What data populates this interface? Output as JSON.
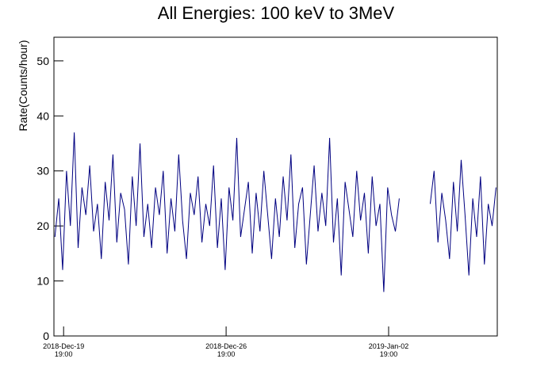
{
  "chart_data": {
    "type": "line",
    "title": "All Energies:  100 keV to 3MeV",
    "y_label": "Rate(Counts/hour)",
    "x": [
      "2018-12-19 10:00",
      "2018-12-19 14:00",
      "2018-12-19 18:00",
      "2018-12-19 22:00",
      "2018-12-20 02:00",
      "2018-12-20 06:00",
      "2018-12-20 10:00",
      "2018-12-20 14:00",
      "2018-12-20 18:00",
      "2018-12-20 22:00",
      "2018-12-21 02:00",
      "2018-12-21 06:00",
      "2018-12-21 10:00",
      "2018-12-21 14:00",
      "2018-12-21 18:00",
      "2018-12-21 22:00",
      "2018-12-22 02:00",
      "2018-12-22 06:00",
      "2018-12-22 10:00",
      "2018-12-22 14:00",
      "2018-12-22 18:00",
      "2018-12-22 22:00",
      "2018-12-23 02:00",
      "2018-12-23 06:00",
      "2018-12-23 10:00",
      "2018-12-23 14:00",
      "2018-12-23 18:00",
      "2018-12-23 22:00",
      "2018-12-24 02:00",
      "2018-12-24 06:00",
      "2018-12-24 10:00",
      "2018-12-24 14:00",
      "2018-12-24 18:00",
      "2018-12-24 22:00",
      "2018-12-25 02:00",
      "2018-12-25 06:00",
      "2018-12-25 10:00",
      "2018-12-25 14:00",
      "2018-12-25 18:00",
      "2018-12-25 22:00",
      "2018-12-26 02:00",
      "2018-12-26 06:00",
      "2018-12-26 10:00",
      "2018-12-26 14:00",
      "2018-12-26 18:00",
      "2018-12-26 22:00",
      "2018-12-27 02:00",
      "2018-12-27 06:00",
      "2018-12-27 10:00",
      "2018-12-27 14:00",
      "2018-12-27 18:00",
      "2018-12-27 22:00",
      "2018-12-28 02:00",
      "2018-12-28 06:00",
      "2018-12-28 10:00",
      "2018-12-28 14:00",
      "2018-12-28 18:00",
      "2018-12-28 22:00",
      "2018-12-29 02:00",
      "2018-12-29 06:00",
      "2018-12-29 10:00",
      "2018-12-29 14:00",
      "2018-12-29 18:00",
      "2018-12-29 22:00",
      "2018-12-30 02:00",
      "2018-12-30 06:00",
      "2018-12-30 10:00",
      "2018-12-30 14:00",
      "2018-12-30 18:00",
      "2018-12-30 22:00",
      "2018-12-31 02:00",
      "2018-12-31 06:00",
      "2018-12-31 10:00",
      "2018-12-31 14:00",
      "2018-12-31 18:00",
      "2018-12-31 22:00",
      "2019-01-01 02:00",
      "2019-01-01 06:00",
      "2019-01-01 10:00",
      "2019-01-01 14:00",
      "2019-01-01 18:00",
      "2019-01-01 22:00",
      "2019-01-02 02:00",
      "2019-01-02 06:00",
      "2019-01-02 10:00",
      "2019-01-02 14:00",
      "2019-01-02 18:00",
      "2019-01-02 22:00",
      "2019-01-03 02:00",
      "2019-01-03 06:00",
      "2019-01-03 10:00",
      "2019-01-03 14:00",
      "2019-01-03 18:00",
      "2019-01-03 22:00",
      "2019-01-04 02:00",
      "2019-01-04 06:00",
      "2019-01-04 10:00",
      "2019-01-04 14:00",
      "2019-01-04 18:00",
      "2019-01-04 22:00",
      "2019-01-05 02:00",
      "2019-01-05 06:00",
      "2019-01-05 10:00",
      "2019-01-05 14:00",
      "2019-01-05 18:00",
      "2019-01-05 22:00",
      "2019-01-06 02:00",
      "2019-01-06 06:00",
      "2019-01-06 10:00",
      "2019-01-06 14:00",
      "2019-01-06 18:00",
      "2019-01-06 22:00",
      "2019-01-07 02:00",
      "2019-01-07 06:00",
      "2019-01-07 10:00"
    ],
    "series": [
      {
        "color": "#000080",
        "values": [
          18,
          25,
          12,
          30,
          20,
          37,
          16,
          27,
          22,
          31,
          19,
          24,
          14,
          28,
          21,
          33,
          17,
          26,
          23,
          13,
          29,
          20,
          35,
          18,
          24,
          16,
          27,
          22,
          30,
          15,
          25,
          19,
          33,
          21,
          14,
          26,
          22,
          29,
          17,
          24,
          20,
          31,
          16,
          25,
          12,
          27,
          21,
          36,
          18,
          23,
          28,
          15,
          26,
          19,
          30,
          22,
          14,
          25,
          18,
          29,
          21,
          33,
          16,
          24,
          27,
          13,
          22,
          31,
          19,
          26,
          20,
          36,
          17,
          25,
          11,
          28,
          23,
          18,
          30,
          21,
          26,
          15,
          29,
          20,
          24,
          8,
          27,
          22,
          19,
          25,
          null,
          null,
          null,
          null,
          null,
          null,
          null,
          24,
          30,
          17,
          26,
          21,
          14,
          28,
          19,
          32,
          22,
          11,
          25,
          18,
          29,
          13,
          24,
          20,
          27
        ]
      }
    ],
    "xlim": [
      "2018-12-19 09:00",
      "2019-01-07 11:20"
    ],
    "xticks": [
      {
        "value": "2018-12-19 19:00",
        "label": [
          "2018-Dec-19",
          "19:00"
        ]
      },
      {
        "value": "2018-12-26 19:00",
        "label": [
          "2018-Dec-26",
          "19:00"
        ]
      },
      {
        "value": "2019-01-02 19:00",
        "label": [
          "2019-Jan-02",
          "19:00"
        ]
      }
    ],
    "ylim": [
      0,
      54.3
    ],
    "yticks": [
      0,
      10,
      20,
      30,
      40,
      50
    ]
  }
}
